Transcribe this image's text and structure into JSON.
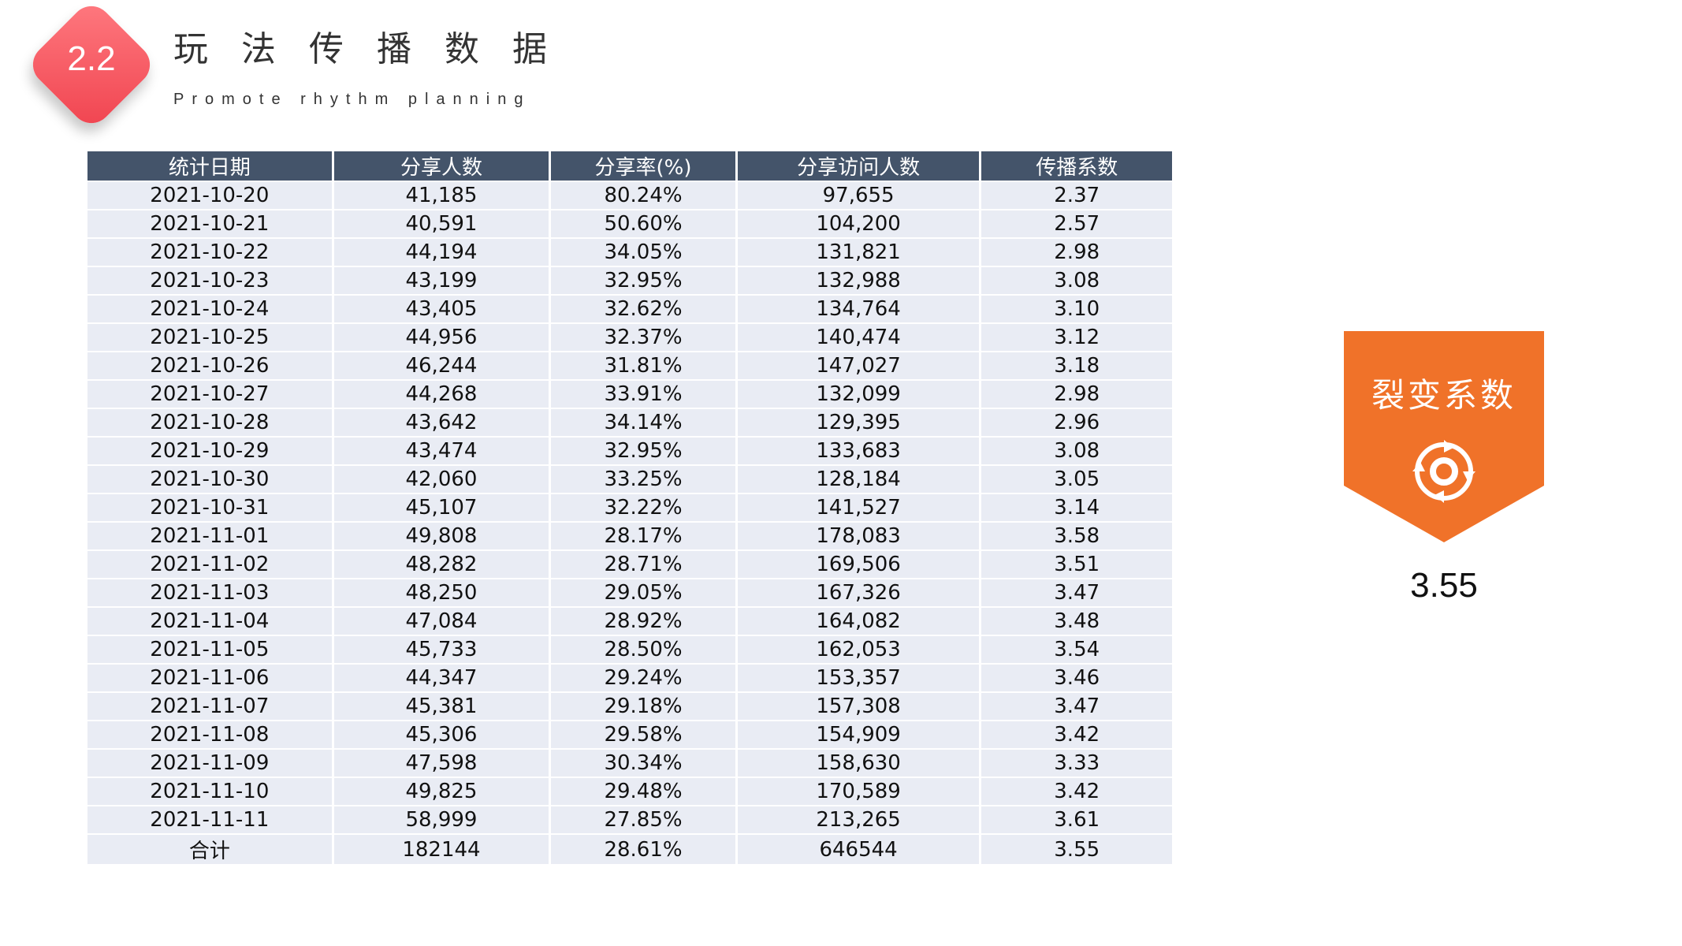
{
  "header": {
    "section_number": "2.2",
    "title": "玩法传播数据",
    "subtitle": "Promote rhythm planning"
  },
  "table": {
    "columns": [
      "统计日期",
      "分享人数",
      "分享率(%)",
      "分享访问人数",
      "传播系数"
    ],
    "rows": [
      [
        "2021-10-20",
        "41,185",
        "80.24%",
        "97,655",
        "2.37"
      ],
      [
        "2021-10-21",
        "40,591",
        "50.60%",
        "104,200",
        "2.57"
      ],
      [
        "2021-10-22",
        "44,194",
        "34.05%",
        "131,821",
        "2.98"
      ],
      [
        "2021-10-23",
        "43,199",
        "32.95%",
        "132,988",
        "3.08"
      ],
      [
        "2021-10-24",
        "43,405",
        "32.62%",
        "134,764",
        "3.10"
      ],
      [
        "2021-10-25",
        "44,956",
        "32.37%",
        "140,474",
        "3.12"
      ],
      [
        "2021-10-26",
        "46,244",
        "31.81%",
        "147,027",
        "3.18"
      ],
      [
        "2021-10-27",
        "44,268",
        "33.91%",
        "132,099",
        "2.98"
      ],
      [
        "2021-10-28",
        "43,642",
        "34.14%",
        "129,395",
        "2.96"
      ],
      [
        "2021-10-29",
        "43,474",
        "32.95%",
        "133,683",
        "3.08"
      ],
      [
        "2021-10-30",
        "42,060",
        "33.25%",
        "128,184",
        "3.05"
      ],
      [
        "2021-10-31",
        "45,107",
        "32.22%",
        "141,527",
        "3.14"
      ],
      [
        "2021-11-01",
        "49,808",
        "28.17%",
        "178,083",
        "3.58"
      ],
      [
        "2021-11-02",
        "48,282",
        "28.71%",
        "169,506",
        "3.51"
      ],
      [
        "2021-11-03",
        "48,250",
        "29.05%",
        "167,326",
        "3.47"
      ],
      [
        "2021-11-04",
        "47,084",
        "28.92%",
        "164,082",
        "3.48"
      ],
      [
        "2021-11-05",
        "45,733",
        "28.50%",
        "162,053",
        "3.54"
      ],
      [
        "2021-11-06",
        "44,347",
        "29.24%",
        "153,357",
        "3.46"
      ],
      [
        "2021-11-07",
        "45,381",
        "29.18%",
        "157,308",
        "3.47"
      ],
      [
        "2021-11-08",
        "45,306",
        "29.58%",
        "154,909",
        "3.42"
      ],
      [
        "2021-11-09",
        "47,598",
        "30.34%",
        "158,630",
        "3.33"
      ],
      [
        "2021-11-10",
        "49,825",
        "29.48%",
        "170,589",
        "3.42"
      ],
      [
        "2021-11-11",
        "58,999",
        "27.85%",
        "213,265",
        "3.61"
      ],
      [
        "合计",
        "182144",
        "28.61%",
        "646544",
        "3.55"
      ]
    ]
  },
  "fission_card": {
    "label": "裂变系数",
    "icon": "cycle-arrows-icon",
    "value": "3.55",
    "color": "#f07229"
  },
  "colors": {
    "badge": "#f0434f",
    "header_bg": "#44546a",
    "row_bg": "#e9ecf4"
  }
}
